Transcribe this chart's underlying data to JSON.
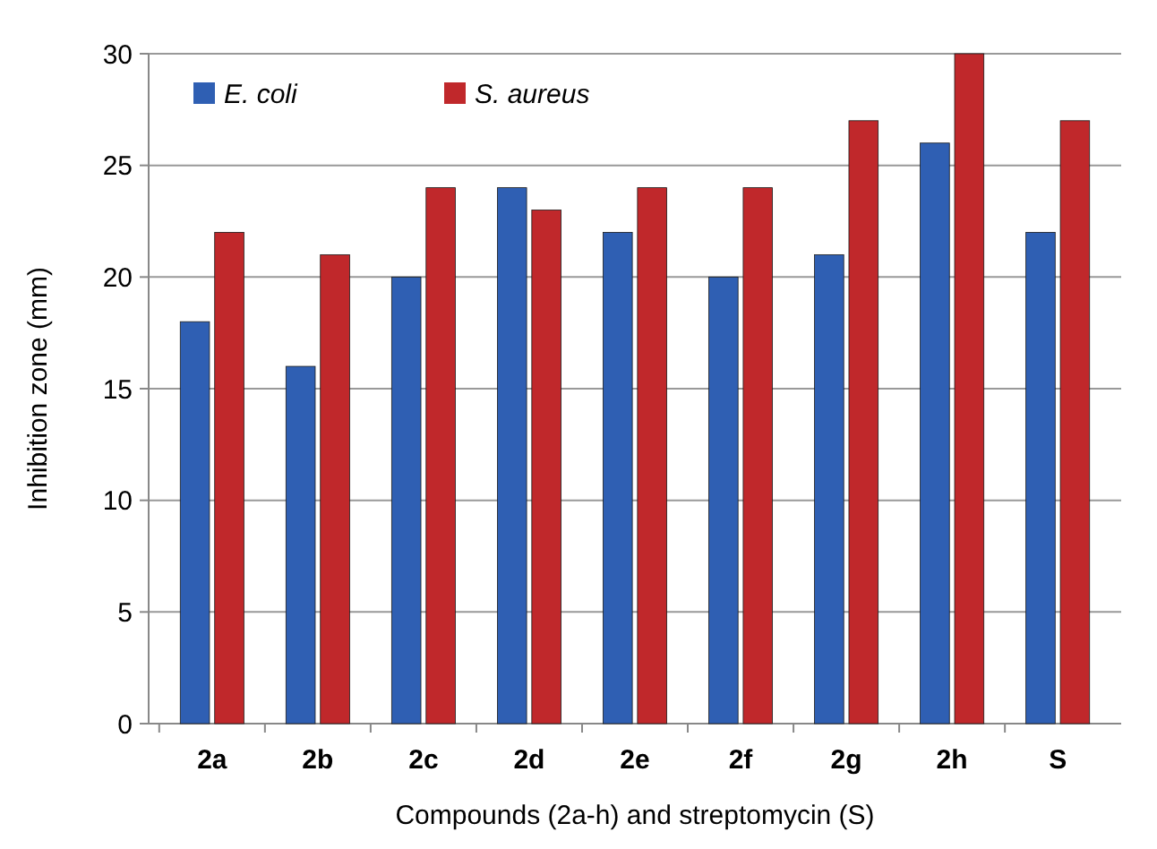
{
  "chart_data": {
    "type": "bar",
    "xlabel": "Compounds (2a-h) and streptomycin (S)",
    "ylabel": "Inhibition zone (mm)",
    "categories": [
      "2a",
      "2b",
      "2c",
      "2d",
      "2e",
      "2f",
      "2g",
      "2h",
      "S"
    ],
    "series": [
      {
        "name": "E. coli",
        "color": "#2f5fb3",
        "values": [
          18,
          16,
          20,
          24,
          22,
          20,
          21,
          26,
          22
        ]
      },
      {
        "name": "S. aureus",
        "color": "#c0282b",
        "values": [
          22,
          21,
          24,
          23,
          24,
          24,
          27,
          30,
          27
        ]
      }
    ],
    "ylim": [
      0,
      30
    ],
    "yticks": [
      0,
      5,
      10,
      15,
      20,
      25,
      30
    ],
    "grid": "y",
    "legend": "top left"
  }
}
